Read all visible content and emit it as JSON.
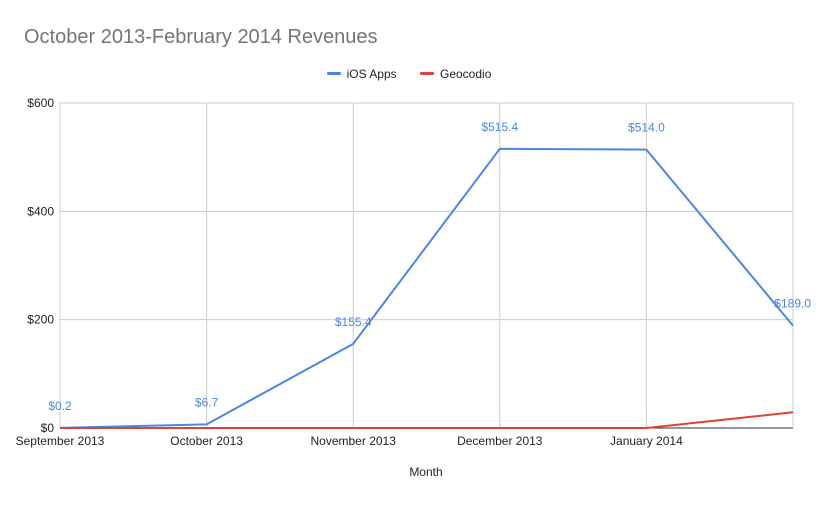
{
  "chart_data": {
    "type": "line",
    "title": "October 2013-February 2014 Revenues",
    "xlabel": "Month",
    "ylabel": "",
    "categories": [
      "September 2013",
      "October 2013",
      "November 2013",
      "December 2013",
      "January 2014",
      ""
    ],
    "ylim": [
      0,
      600
    ],
    "yticks": [
      "$0",
      "$200",
      "$400",
      "$600"
    ],
    "ytick_values": [
      0,
      200,
      400,
      600
    ],
    "grid": true,
    "legend_position": "top",
    "series": [
      {
        "name": "iOS Apps",
        "color": "#4a86e8",
        "values": [
          0.2,
          6.7,
          155.4,
          515.4,
          514.0,
          189.0
        ],
        "labels": [
          "$0.2",
          "$6.7",
          "$155.4",
          "$515.4",
          "$514.0",
          "$189.0"
        ]
      },
      {
        "name": "Geocodio",
        "color": "#db4437",
        "values": [
          0,
          0,
          0,
          0,
          0,
          29
        ],
        "labels": []
      }
    ]
  }
}
